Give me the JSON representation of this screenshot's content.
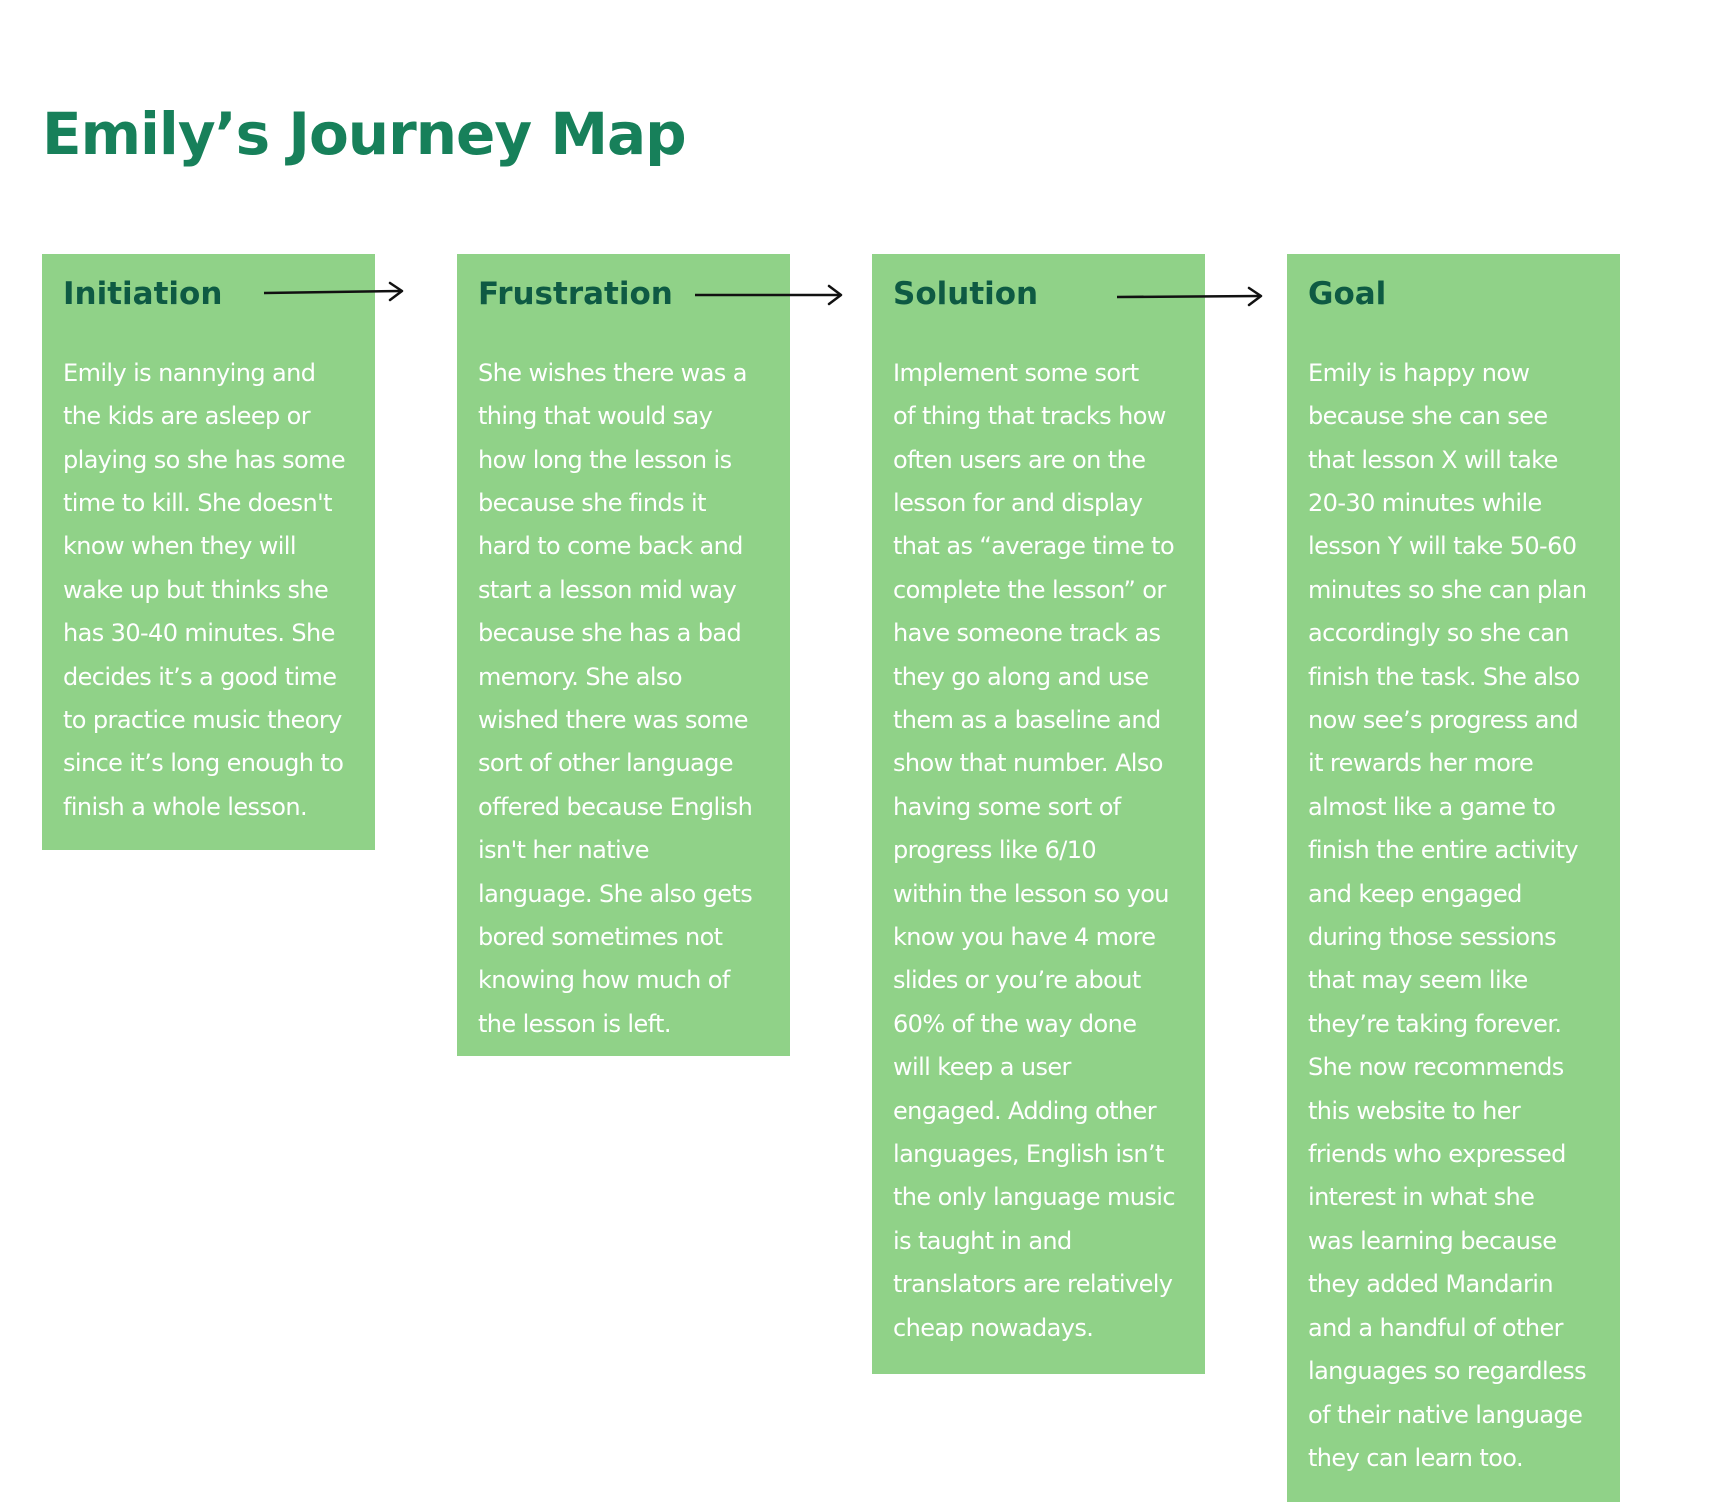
{
  "page": {
    "title": "Emily’s Journey Map"
  },
  "stages": [
    {
      "title": "Initiation",
      "body": "Emily is nannying and\nthe kids are asleep or\nplaying so she has some\ntime to kill. She doesn't\nknow when they will\nwake up but thinks she\nhas 30-40 minutes. She\ndecides it’s a good time\nto practice music theory\nsince it’s long enough to\nfinish a whole lesson."
    },
    {
      "title": "Frustration",
      "body": "She wishes there was a\nthing that would say\nhow long the lesson is\nbecause she finds it\nhard to come back and\nstart a lesson mid way\nbecause she has a bad\nmemory. She also\nwished there was some\nsort of other language\noffered because English\nisn't her native\nlanguage. She also gets\nbored sometimes not\nknowing how much of\nthe lesson is left."
    },
    {
      "title": "Solution",
      "body": " Implement some sort\nof thing that tracks how\noften users are on the\nlesson for and display\nthat as “average time to\ncomplete the lesson” or\nhave someone track as\nthey go along and use\nthem as a baseline and\nshow that number. Also\nhaving some sort of\nprogress like 6/10\nwithin the lesson so you\nknow you have 4 more\nslides or you’re about\n60% of the way done\nwill keep a user\nengaged. Adding other\nlanguages, English isn’t\nthe only language music\nis taught in and\ntranslators are relatively\ncheap nowadays."
    },
    {
      "title": "Goal",
      "body": "Emily is happy now\nbecause she can see\nthat lesson X will take\n20-30 minutes while\nlesson Y will take 50-60\nminutes so she can plan\naccordingly so she can\nfinish the task. She also\nnow see’s progress and\nit rewards her more\nalmost like a game to\nfinish the entire activity\nand keep engaged\nduring those sessions\nthat may seem like\nthey’re taking forever.\nShe now recommends\nthis website to her\nfriends who expressed\ninterest in what she\nwas learning because\nthey added Mandarin\nand a handful of other\nlanguages so regardless\nof their native language\nthey can learn too."
    }
  ],
  "colors": {
    "title": "#17805a",
    "card_background": "#90d288",
    "card_title": "#0e5a43",
    "card_body": "#ffffff",
    "arrow": "#111111"
  },
  "icons": {
    "connector": "arrow-right-icon"
  }
}
